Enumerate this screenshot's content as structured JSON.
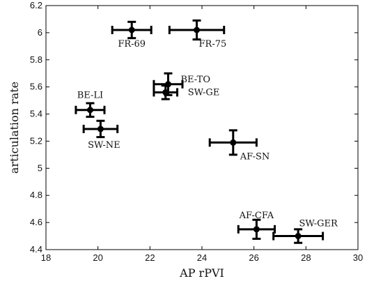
{
  "chart_data": {
    "type": "scatter",
    "xlabel": "AP rPVI",
    "ylabel": "articulation rate",
    "xlim": [
      18,
      30
    ],
    "ylim": [
      4.4,
      6.2
    ],
    "xticks": [
      "18",
      "20",
      "22",
      "24",
      "26",
      "28",
      "30"
    ],
    "yticks": [
      "4.4",
      "4.6",
      "4.8",
      "5",
      "5.2",
      "5.4",
      "5.6",
      "5.8",
      "6",
      "6.2"
    ],
    "grid": false,
    "error_bars": true,
    "points": [
      {
        "label": "FR-69",
        "x": 21.3,
        "y": 6.02,
        "xerr": 0.75,
        "yerr": 0.06
      },
      {
        "label": "FR-75",
        "x": 23.8,
        "y": 6.02,
        "xerr": 1.05,
        "yerr": 0.07
      },
      {
        "label": "BE-TO",
        "x": 22.7,
        "y": 5.62,
        "xerr": 0.55,
        "yerr": 0.08
      },
      {
        "label": "SW-GE",
        "x": 22.6,
        "y": 5.56,
        "xerr": 0.45,
        "yerr": 0.05
      },
      {
        "label": "BE-LI",
        "x": 19.7,
        "y": 5.43,
        "xerr": 0.55,
        "yerr": 0.05
      },
      {
        "label": "SW-NE",
        "x": 20.1,
        "y": 5.29,
        "xerr": 0.65,
        "yerr": 0.06
      },
      {
        "label": "AF-SN",
        "x": 25.2,
        "y": 5.19,
        "xerr": 0.9,
        "yerr": 0.09
      },
      {
        "label": "AF-CFA",
        "x": 26.1,
        "y": 4.55,
        "xerr": 0.7,
        "yerr": 0.07
      },
      {
        "label": "SW-GER",
        "x": 27.7,
        "y": 4.5,
        "xerr": 0.95,
        "yerr": 0.05
      }
    ]
  }
}
